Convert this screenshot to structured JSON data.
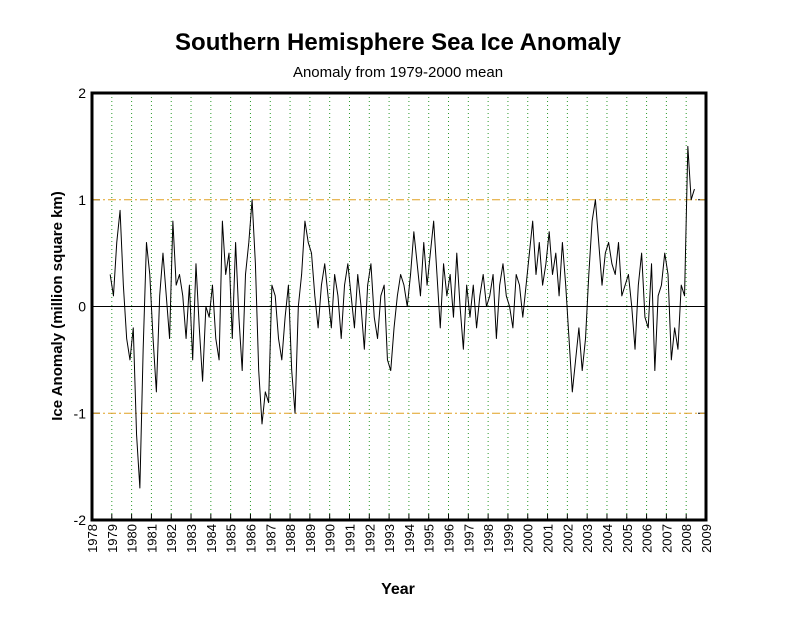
{
  "chart_data": {
    "type": "line",
    "title": "Southern Hemisphere Sea Ice Anomaly",
    "subtitle": "Anomaly from 1979-2000 mean",
    "x_label": "Year",
    "y_label": "Ice Anomaly (million square km)",
    "xlim": [
      1978,
      2009
    ],
    "xticks": [
      1978,
      1979,
      1980,
      1981,
      1982,
      1983,
      1984,
      1985,
      1986,
      1987,
      1988,
      1989,
      1990,
      1991,
      1992,
      1993,
      1994,
      1995,
      1996,
      1997,
      1998,
      1999,
      2000,
      2001,
      2002,
      2003,
      2004,
      2005,
      2006,
      2007,
      2008,
      2009
    ],
    "ylim": [
      -2,
      2
    ],
    "yticks": [
      -2,
      -1,
      0,
      1,
      2
    ],
    "x_grid": true,
    "x_grid_color": "#2a9a2a",
    "reference_lines": [
      {
        "value": 1,
        "color": "#e0a020"
      },
      {
        "value": -1,
        "color": "#e0a020"
      },
      {
        "value": 0,
        "color": "#000000"
      }
    ],
    "series": [
      {
        "color": "#000000",
        "x": [
          1978.917,
          1979.083,
          1979.25,
          1979.417,
          1979.583,
          1979.75,
          1979.917,
          1980.083,
          1980.25,
          1980.417,
          1980.583,
          1980.75,
          1980.917,
          1981.083,
          1981.25,
          1981.417,
          1981.583,
          1981.75,
          1981.917,
          1982.083,
          1982.25,
          1982.417,
          1982.583,
          1982.75,
          1982.917,
          1983.083,
          1983.25,
          1983.417,
          1983.583,
          1983.75,
          1983.917,
          1984.083,
          1984.25,
          1984.417,
          1984.583,
          1984.75,
          1984.917,
          1985.083,
          1985.25,
          1985.417,
          1985.583,
          1985.75,
          1985.917,
          1986.083,
          1986.25,
          1986.417,
          1986.583,
          1986.75,
          1986.917,
          1987.083,
          1987.25,
          1987.417,
          1987.583,
          1987.75,
          1987.917,
          1988.083,
          1988.25,
          1988.417,
          1988.583,
          1988.75,
          1988.917,
          1989.083,
          1989.25,
          1989.417,
          1989.583,
          1989.75,
          1989.917,
          1990.083,
          1990.25,
          1990.417,
          1990.583,
          1990.75,
          1990.917,
          1991.083,
          1991.25,
          1991.417,
          1991.583,
          1991.75,
          1991.917,
          1992.083,
          1992.25,
          1992.417,
          1992.583,
          1992.75,
          1992.917,
          1993.083,
          1993.25,
          1993.417,
          1993.583,
          1993.75,
          1993.917,
          1994.083,
          1994.25,
          1994.417,
          1994.583,
          1994.75,
          1994.917,
          1995.083,
          1995.25,
          1995.417,
          1995.583,
          1995.75,
          1995.917,
          1996.083,
          1996.25,
          1996.417,
          1996.583,
          1996.75,
          1996.917,
          1997.083,
          1997.25,
          1997.417,
          1997.583,
          1997.75,
          1997.917,
          1998.083,
          1998.25,
          1998.417,
          1998.583,
          1998.75,
          1998.917,
          1999.083,
          1999.25,
          1999.417,
          1999.583,
          1999.75,
          1999.917,
          2000.083,
          2000.25,
          2000.417,
          2000.583,
          2000.75,
          2000.917,
          2001.083,
          2001.25,
          2001.417,
          2001.583,
          2001.75,
          2001.917,
          2002.083,
          2002.25,
          2002.417,
          2002.583,
          2002.75,
          2002.917,
          2003.083,
          2003.25,
          2003.417,
          2003.583,
          2003.75,
          2003.917,
          2004.083,
          2004.25,
          2004.417,
          2004.583,
          2004.75,
          2004.917,
          2005.083,
          2005.25,
          2005.417,
          2005.583,
          2005.75,
          2005.917,
          2006.083,
          2006.25,
          2006.417,
          2006.583,
          2006.75,
          2006.917,
          2007.083,
          2007.25,
          2007.417,
          2007.583,
          2007.75,
          2007.917,
          2008.083,
          2008.25,
          2008.417
        ],
        "values": [
          0.3,
          0.1,
          0.6,
          0.9,
          0.2,
          -0.3,
          -0.5,
          -0.2,
          -1.2,
          -1.7,
          -0.4,
          0.6,
          0.3,
          -0.3,
          -0.8,
          0.1,
          0.5,
          0.1,
          -0.3,
          0.8,
          0.2,
          0.3,
          0.1,
          -0.3,
          0.2,
          -0.5,
          0.4,
          -0.2,
          -0.7,
          0.0,
          -0.1,
          0.2,
          -0.3,
          -0.5,
          0.8,
          0.3,
          0.5,
          -0.3,
          0.6,
          -0.1,
          -0.6,
          0.3,
          0.6,
          1.0,
          0.4,
          -0.6,
          -1.1,
          -0.8,
          -0.9,
          0.2,
          0.1,
          -0.3,
          -0.5,
          -0.1,
          0.2,
          -0.6,
          -1.0,
          0.0,
          0.3,
          0.8,
          0.6,
          0.5,
          0.1,
          -0.2,
          0.2,
          0.4,
          0.1,
          -0.2,
          0.3,
          0.1,
          -0.3,
          0.2,
          0.4,
          0.1,
          -0.2,
          0.3,
          0.0,
          -0.4,
          0.2,
          0.4,
          -0.1,
          -0.3,
          0.1,
          0.2,
          -0.5,
          -0.6,
          -0.2,
          0.1,
          0.3,
          0.2,
          0.0,
          0.3,
          0.7,
          0.4,
          0.1,
          0.6,
          0.2,
          0.5,
          0.8,
          0.3,
          -0.2,
          0.4,
          0.1,
          0.3,
          -0.1,
          0.5,
          0.0,
          -0.4,
          0.2,
          -0.1,
          0.2,
          -0.2,
          0.1,
          0.3,
          0.0,
          0.1,
          0.3,
          -0.3,
          0.2,
          0.4,
          0.1,
          0.0,
          -0.2,
          0.3,
          0.2,
          -0.1,
          0.2,
          0.5,
          0.8,
          0.3,
          0.6,
          0.2,
          0.4,
          0.7,
          0.3,
          0.5,
          0.1,
          0.6,
          0.2,
          -0.3,
          -0.8,
          -0.5,
          -0.2,
          -0.6,
          -0.3,
          0.3,
          0.8,
          1.0,
          0.6,
          0.2,
          0.5,
          0.6,
          0.4,
          0.3,
          0.6,
          0.1,
          0.2,
          0.3,
          0.0,
          -0.4,
          0.2,
          0.5,
          -0.1,
          -0.2,
          0.4,
          -0.6,
          0.1,
          0.2,
          0.5,
          0.3,
          -0.5,
          -0.2,
          -0.4,
          0.2,
          0.1,
          1.5,
          1.0,
          1.1
        ]
      }
    ]
  }
}
